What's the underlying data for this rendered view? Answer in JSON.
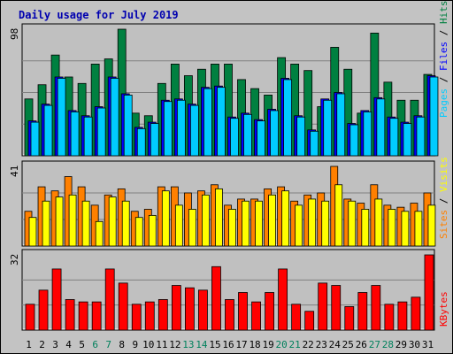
{
  "title": "Daily usage for July 2019",
  "days": [
    "1",
    "2",
    "3",
    "4",
    "5",
    "6",
    "7",
    "8",
    "9",
    "10",
    "11",
    "12",
    "13",
    "14",
    "15",
    "16",
    "17",
    "18",
    "19",
    "20",
    "21",
    "22",
    "23",
    "24",
    "25",
    "26",
    "27",
    "28",
    "29",
    "30",
    "31"
  ],
  "weekend_days": [
    "6",
    "7",
    "13",
    "14",
    "20",
    "21",
    "27",
    "28"
  ],
  "colors": {
    "background": "#c3c3c3",
    "title": "#0000b0",
    "pages": "#00ccff",
    "files": "#0000ff",
    "hits": "#008040",
    "sites": "#ff8000",
    "visits": "#ffff00",
    "kbytes": "#ff0000",
    "weekend": "#00805c",
    "weekday": "#000000"
  },
  "chart_data": [
    {
      "type": "bar",
      "ymax_label": "98",
      "legend": [
        "Pages",
        "Files",
        "Hits"
      ],
      "categories": [
        "1",
        "2",
        "3",
        "4",
        "5",
        "6",
        "7",
        "8",
        "9",
        "10",
        "11",
        "12",
        "13",
        "14",
        "15",
        "16",
        "17",
        "18",
        "19",
        "20",
        "21",
        "22",
        "23",
        "24",
        "25",
        "26",
        "27",
        "28",
        "29",
        "30",
        "31"
      ],
      "series": [
        {
          "name": "Hits",
          "values": [
            44,
            55,
            78,
            61,
            56,
            71,
            75,
            98,
            33,
            31,
            56,
            71,
            62,
            67,
            71,
            71,
            59,
            52,
            47,
            76,
            71,
            66,
            38,
            84,
            67,
            33,
            95,
            57,
            43,
            43,
            63
          ]
        },
        {
          "name": "Files",
          "values": [
            27,
            40,
            61,
            35,
            31,
            38,
            61,
            48,
            22,
            26,
            43,
            44,
            40,
            53,
            54,
            30,
            33,
            28,
            36,
            60,
            31,
            20,
            44,
            49,
            25,
            35,
            45,
            30,
            26,
            31,
            62
          ]
        },
        {
          "name": "Pages",
          "values": [
            26,
            39,
            60,
            34,
            30,
            37,
            60,
            47,
            21,
            25,
            42,
            43,
            39,
            52,
            53,
            29,
            32,
            27,
            35,
            59,
            30,
            19,
            43,
            48,
            24,
            34,
            44,
            29,
            25,
            30,
            61
          ]
        }
      ]
    },
    {
      "type": "bar",
      "ymax_label": "41",
      "legend": [
        "Sites",
        "Visits"
      ],
      "categories": [
        "1",
        "2",
        "3",
        "4",
        "5",
        "6",
        "7",
        "8",
        "9",
        "10",
        "11",
        "12",
        "13",
        "14",
        "15",
        "16",
        "17",
        "18",
        "19",
        "20",
        "21",
        "22",
        "23",
        "24",
        "25",
        "26",
        "27",
        "28",
        "29",
        "30",
        "31"
      ],
      "series": [
        {
          "name": "Sites",
          "values": [
            17,
            29,
            27,
            34,
            29,
            20,
            25,
            28,
            17,
            18,
            29,
            29,
            26,
            27,
            30,
            20,
            23,
            23,
            28,
            29,
            22,
            25,
            26,
            39,
            23,
            21,
            30,
            20,
            19,
            21,
            26
          ]
        },
        {
          "name": "Visits",
          "values": [
            14,
            22,
            24,
            25,
            22,
            12,
            24,
            22,
            14,
            15,
            27,
            20,
            18,
            25,
            28,
            18,
            22,
            22,
            25,
            27,
            20,
            23,
            22,
            30,
            22,
            18,
            23,
            18,
            17,
            17,
            20
          ]
        }
      ]
    },
    {
      "type": "bar",
      "ymax_label": "32",
      "legend": [
        "KBytes"
      ],
      "categories": [
        "1",
        "2",
        "3",
        "4",
        "5",
        "6",
        "7",
        "8",
        "9",
        "10",
        "11",
        "12",
        "13",
        "14",
        "15",
        "16",
        "17",
        "18",
        "19",
        "20",
        "21",
        "22",
        "23",
        "24",
        "25",
        "26",
        "27",
        "28",
        "29",
        "30",
        "31"
      ],
      "series": [
        {
          "name": "KBytes",
          "values": [
            11,
            17,
            26,
            13,
            12,
            12,
            26,
            20,
            11,
            12,
            13,
            19,
            18,
            17,
            27,
            13,
            16,
            12,
            16,
            26,
            11,
            8,
            20,
            19,
            10,
            16,
            19,
            11,
            12,
            14,
            32
          ]
        }
      ]
    }
  ]
}
